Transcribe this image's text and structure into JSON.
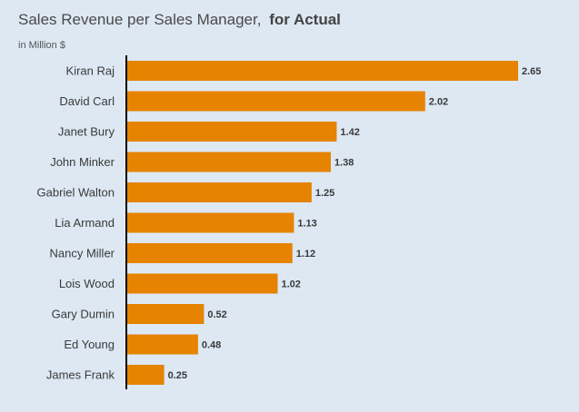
{
  "header": {
    "title": "Sales Revenue per Sales Manager,",
    "subtitle": "for Actual",
    "unit": "in Million $"
  },
  "colors": {
    "bar": "#e68300",
    "axis": "#000000",
    "background": "#dde8f3"
  },
  "chart_data": {
    "type": "bar",
    "orientation": "horizontal",
    "title": "Sales Revenue per Sales Manager, for Actual",
    "unit": "in Million $",
    "grid": false,
    "categories": [
      "Kiran Raj",
      "David Carl",
      "Janet Bury",
      "John Minker",
      "Gabriel Walton",
      "Lia Armand",
      "Nancy Miller",
      "Lois Wood",
      "Gary Dumin",
      "Ed Young",
      "James Frank"
    ],
    "values": [
      2.65,
      2.02,
      1.42,
      1.38,
      1.25,
      1.13,
      1.12,
      1.02,
      0.52,
      0.48,
      0.25
    ],
    "value_labels": [
      "2.65",
      "2.02",
      "1.42",
      "1.38",
      "1.25",
      "1.13",
      "1.12",
      "1.02",
      "0.52",
      "0.48",
      "0.25"
    ],
    "xlim": [
      0,
      2.65
    ]
  }
}
